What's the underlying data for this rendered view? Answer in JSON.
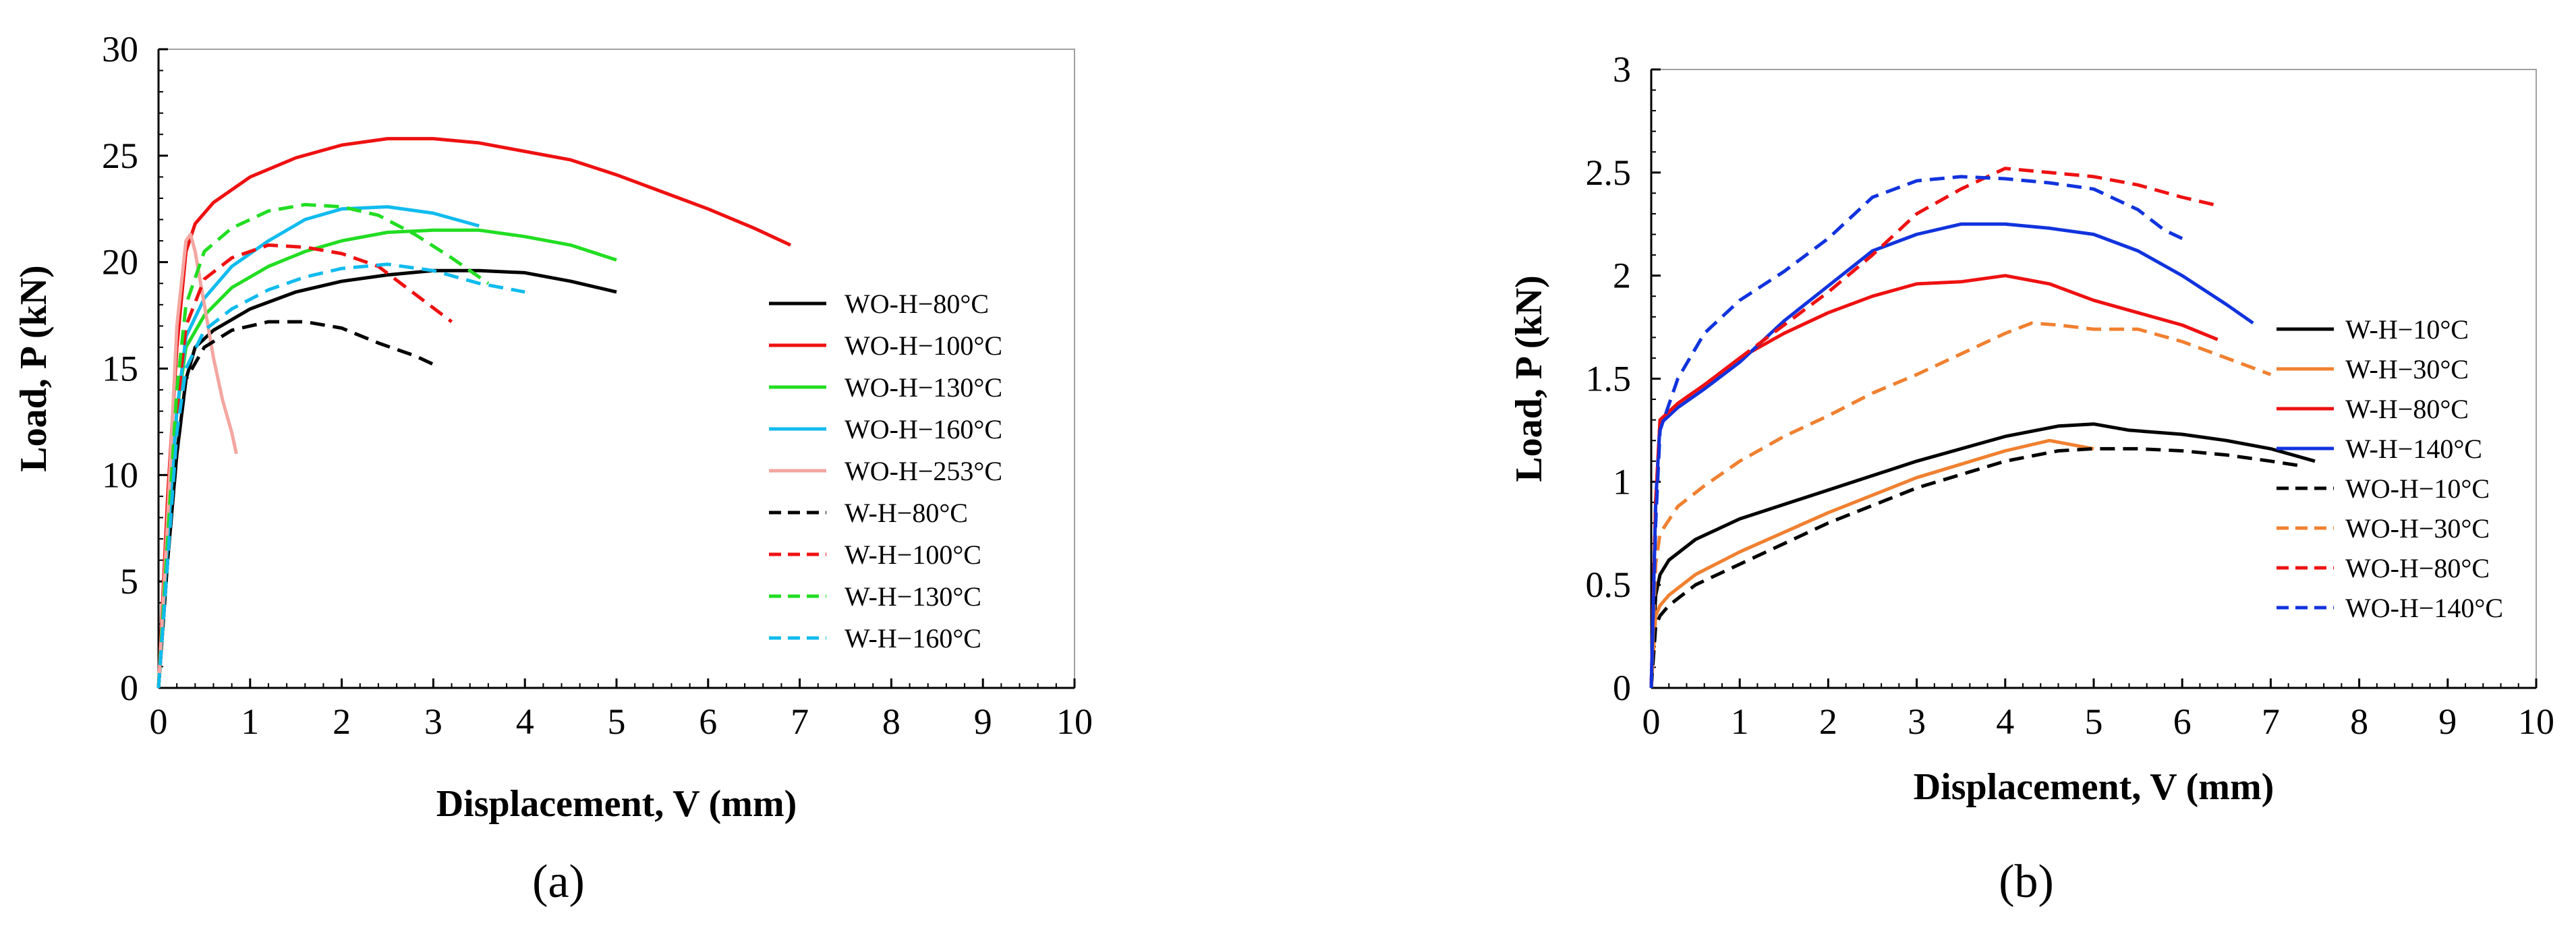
{
  "chart_data": [
    {
      "type": "line",
      "panel_label": "(a)",
      "xlabel": "Displacement, V (mm)",
      "ylabel": "Load, P (kN)",
      "xlim": [
        0,
        10
      ],
      "ylim": [
        0,
        30
      ],
      "xticks": [
        "0",
        "1",
        "2",
        "3",
        "4",
        "5",
        "6",
        "7",
        "8",
        "9",
        "10"
      ],
      "yticks": [
        "0",
        "5",
        "10",
        "15",
        "20",
        "25",
        "30"
      ],
      "grid": false,
      "legend_position": "right",
      "series": [
        {
          "name": "WO-H−80°C",
          "color": "#000000",
          "dash": "solid",
          "x": [
            0,
            0.1,
            0.2,
            0.3,
            0.4,
            0.6,
            1,
            1.5,
            2,
            2.5,
            3,
            3.5,
            4,
            4.5,
            5
          ],
          "y": [
            0,
            6,
            11,
            14.5,
            16,
            16.8,
            17.8,
            18.6,
            19.1,
            19.4,
            19.6,
            19.6,
            19.5,
            19.1,
            18.6
          ]
        },
        {
          "name": "WO-H−100°C",
          "color": "#ee1111",
          "dash": "solid",
          "x": [
            0,
            0.1,
            0.2,
            0.3,
            0.4,
            0.6,
            1,
            1.5,
            2,
            2.5,
            3,
            3.5,
            4,
            4.5,
            5,
            5.5,
            6,
            6.5,
            6.9
          ],
          "y": [
            0,
            9,
            16,
            20.5,
            21.8,
            22.8,
            24,
            24.9,
            25.5,
            25.8,
            25.8,
            25.6,
            25.2,
            24.8,
            24.1,
            23.3,
            22.5,
            21.6,
            20.8
          ]
        },
        {
          "name": "WO-H−130°C",
          "color": "#22dd22",
          "dash": "solid",
          "x": [
            0,
            0.1,
            0.2,
            0.3,
            0.5,
            0.8,
            1.2,
            1.6,
            2,
            2.5,
            3,
            3.5,
            4,
            4.5,
            5
          ],
          "y": [
            0,
            7,
            13,
            16,
            17.5,
            18.8,
            19.8,
            20.5,
            21,
            21.4,
            21.5,
            21.5,
            21.2,
            20.8,
            20.1
          ]
        },
        {
          "name": "WO-H−160°C",
          "color": "#11bbee",
          "dash": "solid",
          "x": [
            0,
            0.1,
            0.2,
            0.3,
            0.5,
            0.8,
            1.2,
            1.6,
            2,
            2.5,
            3,
            3.5
          ],
          "y": [
            0,
            7,
            13,
            16.5,
            18.3,
            19.8,
            21,
            22,
            22.5,
            22.6,
            22.3,
            21.7
          ]
        },
        {
          "name": "WO-H−253°C",
          "color": "#f4a6a0",
          "dash": "solid",
          "x": [
            0,
            0.1,
            0.2,
            0.3,
            0.35,
            0.4,
            0.5,
            0.6,
            0.7,
            0.8,
            0.85
          ],
          "y": [
            0,
            8,
            17,
            21,
            21.3,
            20.5,
            18,
            15.5,
            13.5,
            12,
            11
          ]
        },
        {
          "name": "W-H−80°C",
          "color": "#000000",
          "dash": "dash",
          "x": [
            0,
            0.1,
            0.2,
            0.3,
            0.5,
            0.8,
            1.2,
            1.6,
            2,
            2.4,
            2.8,
            3
          ],
          "y": [
            0,
            6,
            11,
            14.5,
            16,
            16.8,
            17.2,
            17.2,
            16.9,
            16.2,
            15.6,
            15.2
          ]
        },
        {
          "name": "W-H−100°C",
          "color": "#ee1111",
          "dash": "dash",
          "x": [
            0,
            0.1,
            0.2,
            0.3,
            0.5,
            0.8,
            1.2,
            1.6,
            2,
            2.4,
            2.8,
            3.2
          ],
          "y": [
            0,
            7,
            13,
            17,
            19.2,
            20.2,
            20.8,
            20.7,
            20.4,
            19.8,
            18.5,
            17.2
          ]
        },
        {
          "name": "W-H−130°C",
          "color": "#22dd22",
          "dash": "dash",
          "x": [
            0,
            0.1,
            0.2,
            0.3,
            0.5,
            0.8,
            1.2,
            1.6,
            2,
            2.4,
            2.8,
            3.2,
            3.6
          ],
          "y": [
            0,
            7,
            14,
            18,
            20.5,
            21.6,
            22.4,
            22.7,
            22.6,
            22.2,
            21.3,
            20.2,
            19
          ]
        },
        {
          "name": "W-H−160°C",
          "color": "#11bbee",
          "dash": "dash",
          "x": [
            0,
            0.1,
            0.2,
            0.3,
            0.5,
            0.8,
            1.2,
            1.6,
            2,
            2.5,
            3,
            3.5,
            4
          ],
          "y": [
            0,
            6,
            12,
            15,
            16.8,
            17.8,
            18.7,
            19.3,
            19.7,
            19.9,
            19.6,
            19,
            18.6
          ]
        }
      ]
    },
    {
      "type": "line",
      "panel_label": "(b)",
      "xlabel": "Displacement, V (mm)",
      "ylabel": "Load, P (kN)",
      "xlim": [
        0,
        10
      ],
      "ylim": [
        0,
        3
      ],
      "xticks": [
        "0",
        "1",
        "2",
        "3",
        "4",
        "5",
        "6",
        "7",
        "8",
        "9",
        "10"
      ],
      "yticks": [
        "0",
        "0.5",
        "1",
        "1.5",
        "2",
        "2.5",
        "3"
      ],
      "grid": false,
      "legend_position": "bottom-right",
      "series": [
        {
          "name": "W-H−10°C",
          "color": "#000000",
          "dash": "solid",
          "x": [
            0,
            0.05,
            0.1,
            0.2,
            0.5,
            1,
            2,
            3,
            4,
            4.6,
            5,
            5.4,
            6,
            6.5,
            7,
            7.5
          ],
          "y": [
            0,
            0.45,
            0.55,
            0.62,
            0.72,
            0.82,
            0.96,
            1.1,
            1.22,
            1.27,
            1.28,
            1.25,
            1.23,
            1.2,
            1.16,
            1.1
          ]
        },
        {
          "name": "W-H−30°C",
          "color": "#f08030",
          "dash": "solid",
          "x": [
            0,
            0.05,
            0.1,
            0.2,
            0.5,
            1,
            2,
            3,
            4,
            4.5,
            5
          ],
          "y": [
            0,
            0.35,
            0.4,
            0.45,
            0.55,
            0.66,
            0.85,
            1.02,
            1.15,
            1.2,
            1.16
          ]
        },
        {
          "name": "W-H−80°C",
          "color": "#ee1111",
          "dash": "solid",
          "x": [
            0,
            0.05,
            0.1,
            0.3,
            0.6,
            1,
            1.5,
            2,
            2.5,
            3,
            3.5,
            4,
            4.5,
            5,
            5.5,
            6,
            6.4
          ],
          "y": [
            0,
            0.9,
            1.3,
            1.38,
            1.47,
            1.6,
            1.72,
            1.82,
            1.9,
            1.96,
            1.97,
            2,
            1.96,
            1.88,
            1.82,
            1.76,
            1.69
          ]
        },
        {
          "name": "W-H−140°C",
          "color": "#1133dd",
          "dash": "solid",
          "x": [
            0,
            0.05,
            0.1,
            0.3,
            0.6,
            1,
            1.5,
            2,
            2.5,
            3,
            3.5,
            4,
            4.5,
            5,
            5.5,
            6,
            6.5,
            6.8
          ],
          "y": [
            0,
            0.9,
            1.28,
            1.36,
            1.45,
            1.58,
            1.78,
            1.95,
            2.12,
            2.2,
            2.25,
            2.25,
            2.23,
            2.2,
            2.12,
            2.0,
            1.86,
            1.77
          ]
        },
        {
          "name": "WO-H−10°C",
          "color": "#000000",
          "dash": "dash",
          "x": [
            0,
            0.05,
            0.1,
            0.2,
            0.5,
            1,
            2,
            3,
            4,
            4.6,
            5,
            5.5,
            6,
            6.5,
            7,
            7.3
          ],
          "y": [
            0,
            0.3,
            0.35,
            0.4,
            0.5,
            0.6,
            0.8,
            0.97,
            1.1,
            1.15,
            1.16,
            1.16,
            1.15,
            1.13,
            1.1,
            1.08
          ]
        },
        {
          "name": "WO-H−30°C",
          "color": "#f08030",
          "dash": "dash",
          "x": [
            0,
            0.05,
            0.1,
            0.3,
            0.6,
            1,
            1.5,
            2,
            2.5,
            3,
            3.5,
            4,
            4.3,
            4.6,
            5,
            5.5,
            6,
            6.5,
            7
          ],
          "y": [
            0,
            0.6,
            0.75,
            0.88,
            0.98,
            1.1,
            1.22,
            1.32,
            1.43,
            1.52,
            1.62,
            1.72,
            1.77,
            1.76,
            1.74,
            1.74,
            1.68,
            1.6,
            1.52
          ]
        },
        {
          "name": "WO-H−80°C",
          "color": "#ee1111",
          "dash": "dash",
          "x": [
            0,
            0.05,
            0.1,
            0.3,
            0.6,
            1,
            1.5,
            2,
            2.5,
            3,
            3.5,
            4,
            4.5,
            5,
            5.5,
            6,
            6.4
          ],
          "y": [
            0,
            0.9,
            1.3,
            1.38,
            1.47,
            1.6,
            1.76,
            1.92,
            2.1,
            2.3,
            2.42,
            2.52,
            2.5,
            2.48,
            2.44,
            2.38,
            2.34
          ]
        },
        {
          "name": "WO-H−140°C",
          "color": "#1133dd",
          "dash": "dash",
          "x": [
            0,
            0.05,
            0.1,
            0.3,
            0.6,
            1,
            1.5,
            2,
            2.5,
            3,
            3.5,
            4,
            4.5,
            5,
            5.5,
            5.8,
            6
          ],
          "y": [
            0,
            0.8,
            1.25,
            1.5,
            1.72,
            1.88,
            2.02,
            2.18,
            2.38,
            2.46,
            2.48,
            2.47,
            2.45,
            2.42,
            2.32,
            2.22,
            2.18
          ]
        }
      ]
    }
  ]
}
